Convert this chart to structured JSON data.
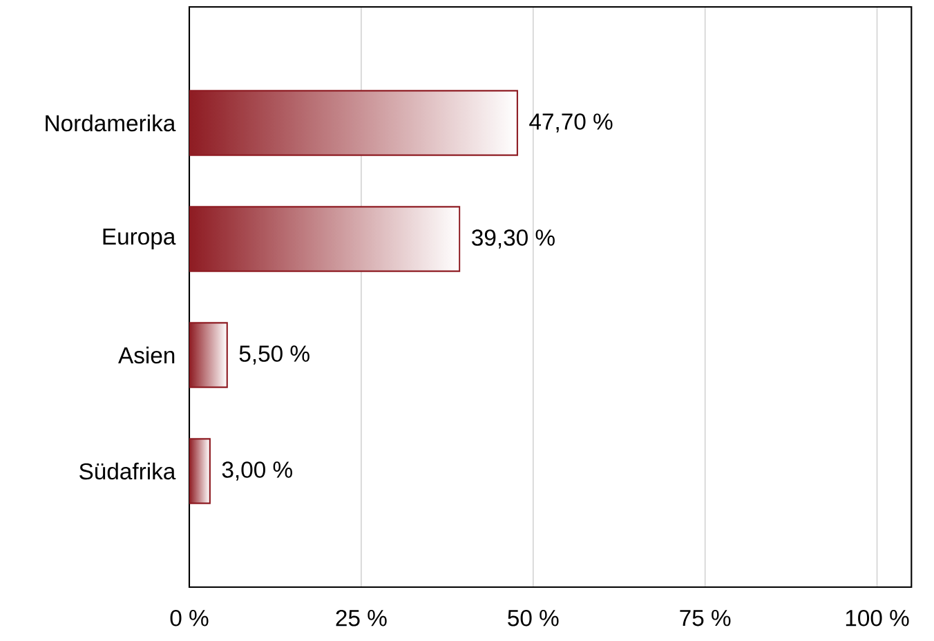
{
  "chart_data": {
    "type": "bar",
    "orientation": "horizontal",
    "categories": [
      "Nordamerika",
      "Europa",
      "Asien",
      "Südafrika"
    ],
    "values": [
      47.7,
      39.3,
      5.5,
      3.0
    ],
    "value_labels": [
      "47,70 %",
      "39,30 %",
      "5,50 %",
      "3,00 %"
    ],
    "color": "#8e1b22",
    "xlim": [
      0,
      105
    ],
    "xticks": [
      {
        "value": 0,
        "label": "0 %"
      },
      {
        "value": 25,
        "label": "25 %"
      },
      {
        "value": 50,
        "label": "50 %"
      },
      {
        "value": 75,
        "label": "75 %"
      },
      {
        "value": 100,
        "label": "100 %"
      }
    ],
    "grid": "x"
  }
}
